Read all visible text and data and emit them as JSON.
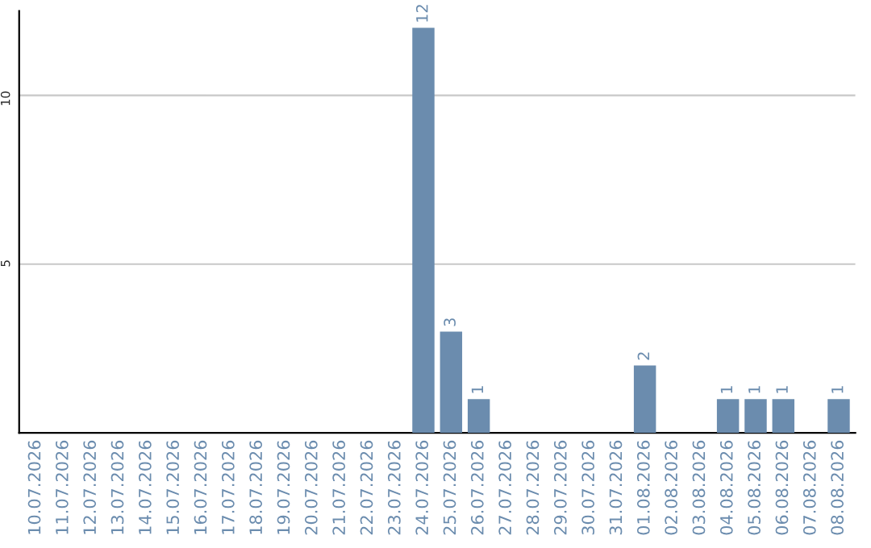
{
  "chart_data": {
    "type": "bar",
    "categories": [
      "10.07.2026",
      "11.07.2026",
      "12.07.2026",
      "13.07.2026",
      "14.07.2026",
      "15.07.2026",
      "16.07.2026",
      "17.07.2026",
      "18.07.2026",
      "19.07.2026",
      "20.07.2026",
      "21.07.2026",
      "22.07.2026",
      "23.07.2026",
      "24.07.2026",
      "25.07.2026",
      "26.07.2026",
      "27.07.2026",
      "28.07.2026",
      "29.07.2026",
      "30.07.2026",
      "31.07.2026",
      "01.08.2026",
      "02.08.2026",
      "03.08.2026",
      "04.08.2026",
      "05.08.2026",
      "06.08.2026",
      "07.08.2026",
      "08.08.2026"
    ],
    "values": [
      0,
      0,
      0,
      0,
      0,
      0,
      0,
      0,
      0,
      0,
      0,
      0,
      0,
      0,
      12,
      3,
      1,
      0,
      0,
      0,
      0,
      0,
      2,
      0,
      0,
      1,
      1,
      1,
      0,
      1
    ],
    "value_labels": [
      null,
      null,
      null,
      null,
      null,
      null,
      null,
      null,
      null,
      null,
      null,
      null,
      null,
      null,
      "12",
      "3",
      "1",
      null,
      null,
      null,
      null,
      null,
      "2",
      null,
      null,
      "1",
      "1",
      "1",
      null,
      "1"
    ],
    "color": "#6b8cae",
    "ylim": [
      0,
      12.5
    ],
    "yticks": [
      5,
      10
    ],
    "grid": "y"
  }
}
